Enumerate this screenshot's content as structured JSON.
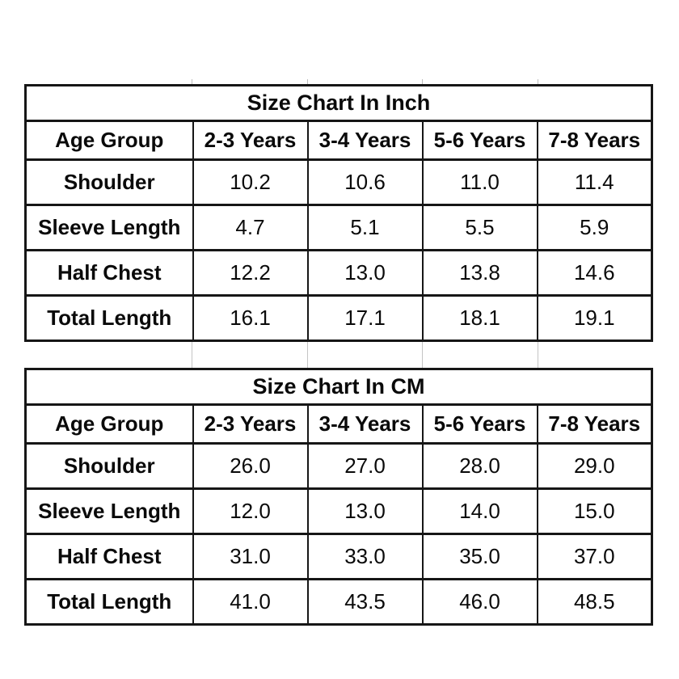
{
  "page": {
    "background": "#ffffff"
  },
  "colors": {
    "table_border": "#161616",
    "light_grid": "#c4c4c4",
    "text": "#0a0a0a"
  },
  "chart_data": [
    {
      "type": "table",
      "title": "Size Chart In Inch",
      "columns": [
        "Age Group",
        "2-3 Years",
        "3-4 Years",
        "5-6 Years",
        "7-8 Years"
      ],
      "rows": [
        {
          "label": "Shoulder",
          "values": [
            "10.2",
            "10.6",
            "11.0",
            "11.4"
          ]
        },
        {
          "label": "Sleeve Length",
          "values": [
            "4.7",
            "5.1",
            "5.5",
            "5.9"
          ]
        },
        {
          "label": "Half Chest",
          "values": [
            "12.2",
            "13.0",
            "13.8",
            "14.6"
          ]
        },
        {
          "label": "Total Length",
          "values": [
            "16.1",
            "17.1",
            "18.1",
            "19.1"
          ]
        }
      ]
    },
    {
      "type": "table",
      "title": "Size Chart In CM",
      "columns": [
        "Age Group",
        "2-3 Years",
        "3-4 Years",
        "5-6 Years",
        "7-8 Years"
      ],
      "rows": [
        {
          "label": "Shoulder",
          "values": [
            "26.0",
            "27.0",
            "28.0",
            "29.0"
          ]
        },
        {
          "label": "Sleeve Length",
          "values": [
            "12.0",
            "13.0",
            "14.0",
            "15.0"
          ]
        },
        {
          "label": "Half Chest",
          "values": [
            "31.0",
            "33.0",
            "35.0",
            "37.0"
          ]
        },
        {
          "label": "Total Length",
          "values": [
            "41.0",
            "43.5",
            "46.0",
            "48.5"
          ]
        }
      ]
    }
  ]
}
